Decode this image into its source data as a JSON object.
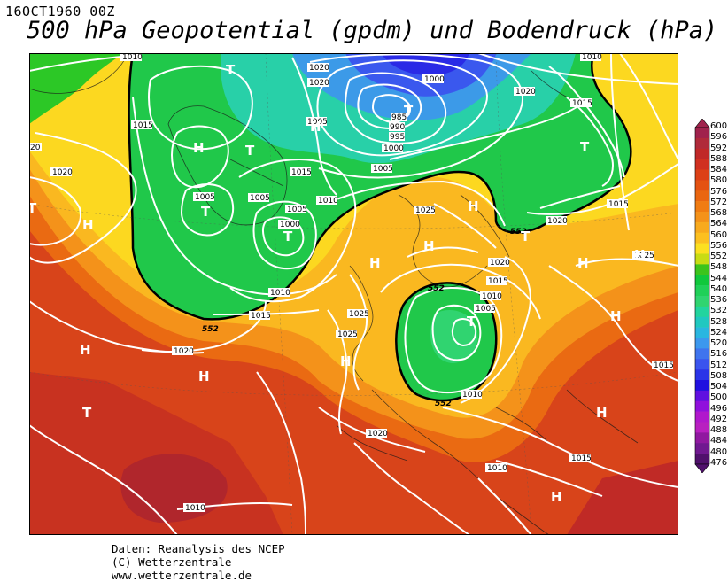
{
  "header": {
    "date": "16OCT1960 00Z",
    "title": "500 hPa Geopotential (gpdm) und Bodendruck (hPa)"
  },
  "footer": {
    "line1": "Daten: Reanalysis des NCEP",
    "line2": "(C) Wetterzentrale",
    "line3": "www.wetterzentrale.de"
  },
  "map": {
    "isobar_labels": [
      "1010",
      "1020",
      "1020",
      "1020",
      "1000",
      "985",
      "990",
      "995",
      "1000",
      "1005",
      "1015",
      "1005",
      "1010",
      "1015",
      "1020",
      "1005",
      "1005",
      "1000",
      "1005",
      "1010",
      "1015",
      "1025",
      "1025",
      "1025",
      "1015",
      "1010",
      "1005",
      "1020",
      "1015",
      "1025",
      "1020",
      "1015",
      "1010",
      "1020",
      "1015",
      "1010",
      "1015",
      "1020",
      "20"
    ],
    "contour_552_labels": [
      "552",
      "552",
      "552",
      "552"
    ],
    "pressure_centers": [
      "T",
      "T",
      "H",
      "H",
      "T",
      "T",
      "H",
      "T",
      "T",
      "H",
      "H",
      "H",
      "H",
      "T",
      "H",
      "H",
      "T",
      "H",
      "H",
      "H",
      "H",
      "H",
      "H",
      "H"
    ]
  },
  "colorbar": {
    "labels": [
      "600",
      "596",
      "592",
      "588",
      "584",
      "580",
      "576",
      "572",
      "568",
      "564",
      "560",
      "556",
      "552",
      "548",
      "544",
      "540",
      "536",
      "532",
      "528",
      "524",
      "520",
      "516",
      "512",
      "508",
      "504",
      "500",
      "496",
      "492",
      "488",
      "484",
      "480",
      "476"
    ],
    "colors": [
      "#a0224c",
      "#b02a3a",
      "#c02828",
      "#d03020",
      "#dc4016",
      "#e45212",
      "#ea6610",
      "#f07c12",
      "#f4921a",
      "#f8aa1e",
      "#fcc020",
      "#fce020",
      "#c8dc14",
      "#3cc41c",
      "#10c83c",
      "#20d058",
      "#30d470",
      "#22d49e",
      "#20c8c0",
      "#2ab6e0",
      "#3c98ee",
      "#3f74ee",
      "#3a54ee",
      "#2a34e8",
      "#2010e0",
      "#6010e0",
      "#9010dc",
      "#b018cc",
      "#b820c0",
      "#9018a0",
      "#701890",
      "#50106c"
    ]
  }
}
